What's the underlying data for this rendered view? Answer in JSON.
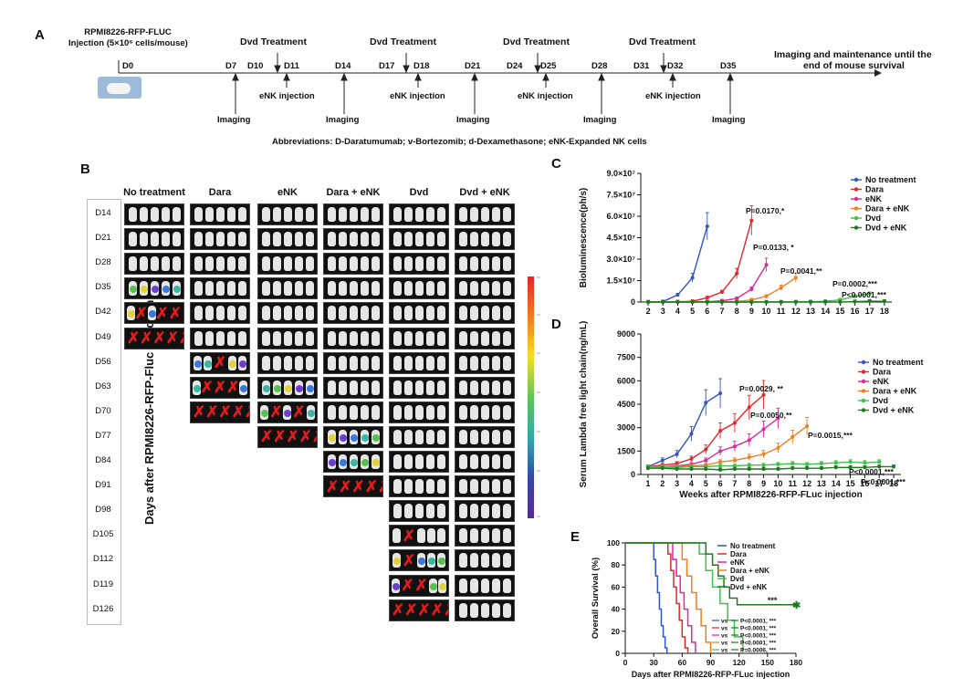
{
  "panelA": {
    "letter": "A",
    "injection_title": "RPMI8226-RFP-FLUC",
    "injection_sub": "Injection (5×10⁶ cells/mouse)",
    "days": [
      "D0",
      "D7",
      "D10",
      "D11",
      "D14",
      "D17",
      "D18",
      "D21",
      "D24",
      "D25",
      "D28",
      "D31",
      "D32",
      "D35"
    ],
    "dvd_label": "Dvd Treatment",
    "enk_label": "eNK injection",
    "imaging_label": "Imaging",
    "end_label_1": "Imaging  and maintenance until the",
    "end_label_2": "end of  mouse survival",
    "abbrev": "Abbreviations: D-Daratumumab; v-Bortezomib; d-Dexamethasone; eNK-Expanded NK cells"
  },
  "panelB": {
    "letter": "B",
    "y_title": "Days after RPMI8226-RFP-Fluc  injection",
    "groups": [
      "No treatment",
      "Dara",
      "eNK",
      "Dara + eNK",
      "Dvd",
      "Dvd + eNK"
    ],
    "days": [
      "D14",
      "D21",
      "D28",
      "D35",
      "D42",
      "D49",
      "D56",
      "D63",
      "D70",
      "D77",
      "D84",
      "D91",
      "D98",
      "D105",
      "D112",
      "D119",
      "D126"
    ]
  },
  "colors": {
    "no_treatment": "#2f55c8",
    "dara": "#e02828",
    "enk": "#e0269a",
    "dara_enk": "#f07f22",
    "dvd": "#3fc04a",
    "dvd_enk": "#1e7a1e"
  },
  "chart_data": [
    {
      "type": "line",
      "panel": "C",
      "title": "",
      "xlabel": "Weeks after RPMI8226-RFP-FLuc injection",
      "ylabel": "Bioluminescence(ph/s)",
      "x": [
        2,
        3,
        4,
        5,
        6,
        7,
        8,
        9,
        10,
        11,
        12,
        13,
        14,
        15,
        16,
        17,
        18
      ],
      "xlim": [
        1.5,
        18.5
      ],
      "ylim": [
        0,
        90000000
      ],
      "yticks": [
        "0",
        "1.5×10⁷",
        "3.0×10⁷",
        "4.5×10⁷",
        "6.0×10⁷",
        "7.5×10⁷",
        "9.0×10⁷"
      ],
      "series": [
        {
          "name": "No treatment",
          "x": [
            2,
            3,
            4,
            5,
            6
          ],
          "values": [
            0,
            300000,
            5000000,
            17000000,
            53000000
          ]
        },
        {
          "name": "Dara",
          "x": [
            2,
            3,
            4,
            5,
            6,
            7,
            8,
            9
          ],
          "values": [
            0,
            0,
            200000,
            500000,
            3000000,
            7000000,
            20000000,
            57000000
          ]
        },
        {
          "name": "eNK",
          "x": [
            2,
            3,
            4,
            5,
            6,
            7,
            8,
            9,
            10
          ],
          "values": [
            0,
            0,
            0,
            0,
            200000,
            800000,
            2500000,
            9000000,
            26000000
          ]
        },
        {
          "name": "Dara + eNK",
          "x": [
            2,
            3,
            4,
            5,
            6,
            7,
            8,
            9,
            10,
            11,
            12
          ],
          "values": [
            0,
            0,
            0,
            0,
            0,
            0,
            300000,
            1500000,
            4000000,
            10000000,
            17000000
          ]
        },
        {
          "name": "Dvd",
          "x": [
            2,
            3,
            4,
            5,
            6,
            7,
            8,
            9,
            10,
            11,
            12,
            13,
            14,
            15,
            16,
            17
          ],
          "values": [
            0,
            0,
            0,
            0,
            0,
            0,
            0,
            0,
            0,
            0,
            100000,
            200000,
            500000,
            1500000,
            4000000,
            6000000
          ]
        },
        {
          "name": "Dvd + eNK",
          "x": [
            2,
            3,
            4,
            5,
            6,
            7,
            8,
            9,
            10,
            11,
            12,
            13,
            14,
            15,
            16,
            17,
            18
          ],
          "values": [
            0,
            0,
            0,
            0,
            0,
            0,
            0,
            0,
            0,
            0,
            0,
            0,
            0,
            0,
            300000,
            600000,
            500000
          ]
        }
      ],
      "annotations": [
        "P=0.0170,*",
        "P=0.0133, *",
        "P=0.0041,**",
        "P=0.0002,***",
        "P<0.0001,***"
      ]
    },
    {
      "type": "line",
      "panel": "D",
      "xlabel": "Weeks after RPMI8226-RFP-FLuc injection",
      "ylabel": "Serum Lambda free light chain(ng/mL)",
      "x": [
        1,
        2,
        3,
        4,
        5,
        6,
        7,
        8,
        9,
        10,
        11,
        12,
        13,
        14,
        15,
        16,
        17,
        18
      ],
      "xlim": [
        0.5,
        18.5
      ],
      "ylim": [
        0,
        9000
      ],
      "yticks": [
        "0",
        "1500",
        "3000",
        "4500",
        "6000",
        "7500",
        "9000"
      ],
      "series": [
        {
          "name": "No treatment",
          "x": [
            1,
            2,
            3,
            4,
            5,
            6
          ],
          "values": [
            500,
            900,
            1300,
            2600,
            4600,
            5200
          ]
        },
        {
          "name": "Dara",
          "x": [
            1,
            2,
            3,
            4,
            5,
            6,
            7,
            8,
            9
          ],
          "values": [
            500,
            600,
            700,
            1000,
            1600,
            2800,
            3300,
            4300,
            5100
          ]
        },
        {
          "name": "eNK",
          "x": [
            1,
            2,
            3,
            4,
            5,
            6,
            7,
            8,
            9,
            10
          ],
          "values": [
            500,
            500,
            550,
            650,
            900,
            1500,
            1800,
            2200,
            2900,
            3600
          ]
        },
        {
          "name": "Dara + eNK",
          "x": [
            1,
            2,
            3,
            4,
            5,
            6,
            7,
            8,
            9,
            10,
            11,
            12
          ],
          "values": [
            500,
            500,
            500,
            550,
            600,
            800,
            900,
            1100,
            1300,
            1700,
            2400,
            3100
          ]
        },
        {
          "name": "Dvd",
          "x": [
            1,
            2,
            3,
            4,
            5,
            6,
            7,
            8,
            9,
            10,
            11,
            12,
            13,
            14,
            15,
            16,
            17
          ],
          "values": [
            500,
            450,
            450,
            500,
            500,
            550,
            550,
            600,
            600,
            650,
            700,
            650,
            700,
            750,
            800,
            750,
            800
          ]
        },
        {
          "name": "Dvd + eNK",
          "x": [
            1,
            2,
            3,
            4,
            5,
            6,
            7,
            8,
            9,
            10,
            11,
            12,
            13,
            14,
            15,
            16,
            17,
            18
          ],
          "values": [
            400,
            400,
            350,
            350,
            350,
            300,
            350,
            350,
            350,
            350,
            400,
            400,
            400,
            450,
            450,
            450,
            500,
            500
          ]
        }
      ],
      "annotations": [
        "P=0.0029, **",
        "P=0.0050,**",
        "P=0.0015,***",
        "P<0.0001,***",
        "P<0.0001,***"
      ]
    },
    {
      "type": "line",
      "panel": "E",
      "xlabel": "Days after RPMI8226-RFP-FLuc injection",
      "ylabel": "Overall Survival (%)",
      "xticks": [
        0,
        30,
        60,
        90,
        120,
        150,
        180
      ],
      "yticks": [
        0,
        20,
        40,
        60,
        80,
        100
      ],
      "xlim": [
        0,
        180
      ],
      "ylim": [
        0,
        100
      ],
      "series": [
        {
          "name": "No treatment",
          "x": [
            0,
            27,
            30,
            32,
            34,
            36,
            38,
            40,
            42,
            44
          ],
          "values": [
            100,
            100,
            85,
            70,
            55,
            40,
            25,
            15,
            5,
            0
          ]
        },
        {
          "name": "Dara",
          "x": [
            0,
            40,
            45,
            48,
            51,
            54,
            57,
            60,
            63,
            66
          ],
          "values": [
            100,
            100,
            90,
            75,
            60,
            45,
            30,
            15,
            5,
            0
          ]
        },
        {
          "name": "eNK",
          "x": [
            0,
            45,
            50,
            54,
            58,
            62,
            66,
            70,
            74
          ],
          "values": [
            100,
            100,
            85,
            70,
            55,
            40,
            25,
            10,
            0
          ]
        },
        {
          "name": "Dara + eNK",
          "x": [
            0,
            55,
            60,
            65,
            70,
            75,
            80,
            85,
            90
          ],
          "values": [
            100,
            100,
            85,
            70,
            55,
            40,
            25,
            10,
            0
          ]
        },
        {
          "name": "Dvd",
          "x": [
            0,
            70,
            78,
            85,
            92,
            100,
            108,
            115,
            124
          ],
          "values": [
            100,
            100,
            90,
            75,
            60,
            45,
            30,
            15,
            0
          ]
        },
        {
          "name": "Dvd + eNK",
          "x": [
            0,
            78,
            85,
            92,
            98,
            104,
            110,
            118,
            180
          ],
          "values": [
            100,
            100,
            90,
            80,
            70,
            60,
            50,
            44,
            44
          ]
        }
      ],
      "stat_star": "***",
      "comparisons": [
        {
          "vs": "vs",
          "p": "P<0.0001, ***"
        },
        {
          "vs": "vs",
          "p": "P<0.0001, ***"
        },
        {
          "vs": "vs",
          "p": "P<0.0001, ***"
        },
        {
          "vs": "vs",
          "p": "P<0.0001, ***"
        },
        {
          "vs": "vs",
          "p": "P=0.0006, ***"
        }
      ]
    }
  ]
}
